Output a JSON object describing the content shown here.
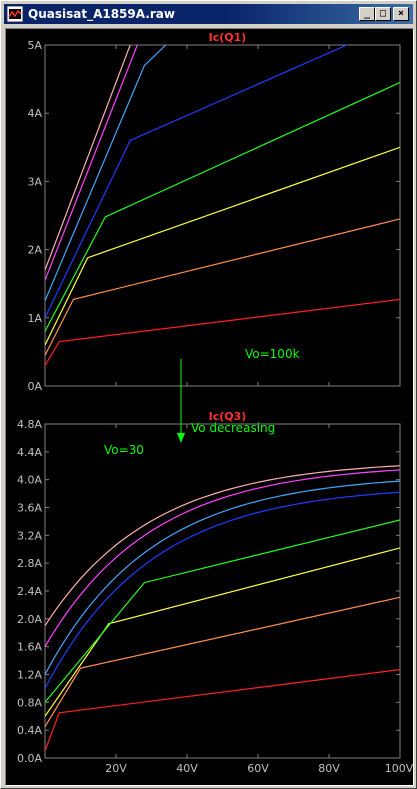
{
  "window": {
    "title": "Quasisat_A1859A.raw",
    "minimize_glyph": "_",
    "maximize_glyph": "□",
    "close_glyph": "×",
    "icon": "waveform-viewer-icon"
  },
  "colors": {
    "plot_bg": "#000000",
    "frame": "#808080",
    "tick_text": "#c0c0c0",
    "trace_title": "#ff3030",
    "annotation": "#00ff00",
    "series": [
      "#ff2020",
      "#ff9050",
      "#ffff40",
      "#20ff20",
      "#1e3cff",
      "#40a8ff",
      "#ff40ff",
      "#ffb0b0"
    ]
  },
  "chart_data": [
    {
      "type": "line",
      "title": "Ic(Q1)",
      "x_ticks": [],
      "xlim": [
        0,
        100
      ],
      "y_ticks": [
        "0A",
        "1A",
        "2A",
        "3A",
        "4A",
        "5A"
      ],
      "ylim": [
        0,
        5
      ],
      "annotations": [
        {
          "text": "Vo=100k"
        }
      ],
      "series": [
        {
          "color": "#ff2020",
          "points": [
            [
              0,
              0.3
            ],
            [
              4,
              0.65
            ],
            [
              100,
              1.27
            ]
          ]
        },
        {
          "color": "#ff9050",
          "points": [
            [
              0,
              0.45
            ],
            [
              8,
              1.27
            ],
            [
              100,
              2.45
            ]
          ]
        },
        {
          "color": "#ffff40",
          "points": [
            [
              0,
              0.6
            ],
            [
              12,
              1.88
            ],
            [
              100,
              3.5
            ]
          ]
        },
        {
          "color": "#20ff20",
          "points": [
            [
              0,
              0.8
            ],
            [
              17,
              2.48
            ],
            [
              100,
              4.45
            ]
          ]
        },
        {
          "color": "#1e3cff",
          "points": [
            [
              0,
              1.0
            ],
            [
              24,
              3.6
            ],
            [
              85,
              5.0
            ]
          ]
        },
        {
          "color": "#40a8ff",
          "points": [
            [
              0,
              1.25
            ],
            [
              28,
              4.7
            ],
            [
              34,
              5.0
            ]
          ]
        },
        {
          "color": "#ff40ff",
          "points": [
            [
              0,
              1.55
            ],
            [
              26,
              5.0
            ]
          ]
        },
        {
          "color": "#ffb0b0",
          "points": [
            [
              0,
              1.7
            ],
            [
              24,
              5.0
            ]
          ]
        }
      ]
    },
    {
      "type": "line",
      "title": "Ic(Q3)",
      "x_ticks": [
        "20V",
        "40V",
        "60V",
        "80V",
        "100V"
      ],
      "xlim": [
        0,
        100
      ],
      "y_ticks": [
        "0.0A",
        "0.4A",
        "0.8A",
        "1.2A",
        "1.6A",
        "2.0A",
        "2.4A",
        "2.8A",
        "3.2A",
        "3.6A",
        "4.0A",
        "4.4A",
        "4.8A"
      ],
      "ylim": [
        0,
        4.8
      ],
      "annotations": [
        {
          "text": "Vo decreasing"
        },
        {
          "text": "Vo=30"
        }
      ],
      "series": [
        {
          "color": "#ff2020",
          "points": [
            [
              0,
              0.1
            ],
            [
              4,
              0.65
            ],
            [
              100,
              1.27
            ]
          ]
        },
        {
          "color": "#ff9050",
          "points": [
            [
              0,
              0.45
            ],
            [
              10,
              1.29
            ],
            [
              100,
              2.31
            ]
          ]
        },
        {
          "color": "#ffff40",
          "points": [
            [
              0,
              0.6
            ],
            [
              18,
              1.93
            ],
            [
              100,
              3.02
            ]
          ]
        },
        {
          "color": "#20ff20",
          "points": [
            [
              0,
              0.8
            ],
            [
              28,
              2.52
            ],
            [
              100,
              3.42
            ]
          ]
        },
        {
          "color": "#1e3cff",
          "shape": "curve",
          "y0": 1.0,
          "yend": 3.82
        },
        {
          "color": "#40a8ff",
          "shape": "curve",
          "y0": 1.2,
          "yend": 3.98
        },
        {
          "color": "#ff40ff",
          "shape": "curve",
          "y0": 1.6,
          "yend": 4.14
        },
        {
          "color": "#ffb0b0",
          "shape": "curve",
          "y0": 1.9,
          "yend": 4.2
        }
      ]
    }
  ]
}
